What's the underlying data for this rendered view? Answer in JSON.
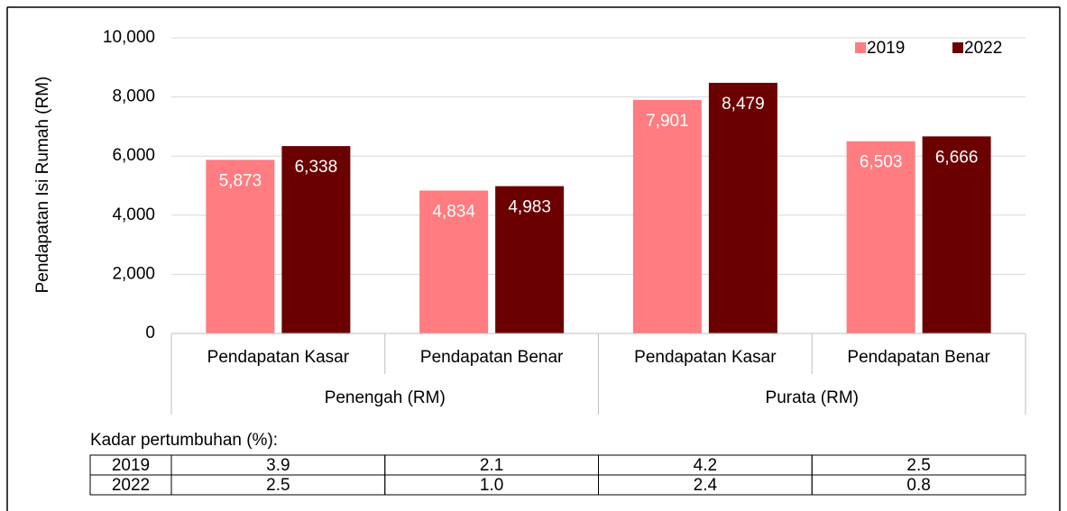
{
  "chart_data": {
    "type": "bar",
    "ylabel": "Pendapatan Isi Rumah (RM)",
    "categories": [
      "Pendapatan Kasar",
      "Pendapatan Benar",
      "Pendapatan Kasar",
      "Pendapatan Benar"
    ],
    "category_groups": [
      "Penengah (RM)",
      "Purata (RM)"
    ],
    "series": [
      {
        "name": "2019",
        "color": "#ff7c80",
        "values": [
          5873,
          4834,
          7901,
          6503
        ],
        "value_labels": [
          "5,873",
          "4,834",
          "7,901",
          "6,503"
        ]
      },
      {
        "name": "2022",
        "color": "#6b0000",
        "values": [
          6338,
          4983,
          8479,
          6666
        ],
        "value_labels": [
          "6,338",
          "4,983",
          "8,479",
          "6,666"
        ]
      }
    ],
    "ylim": [
      0,
      10000
    ],
    "yticks": [
      0,
      {
        "value": 2000,
        "label": "2,000"
      },
      {
        "value": 4000,
        "label": "4,000"
      },
      {
        "value": 6000,
        "label": "6,000"
      },
      {
        "value": 8000,
        "label": "8,000"
      },
      {
        "value": 10000,
        "label": "10,000"
      }
    ],
    "grid": true,
    "legend": "upper right"
  },
  "table": {
    "title": "Kadar pertumbuhan (%):",
    "rows": [
      [
        "2019",
        "3.9",
        "2.1",
        "4.2",
        "2.5"
      ],
      [
        "2022",
        "2.5",
        "1.0",
        "2.4",
        "0.8"
      ]
    ]
  }
}
